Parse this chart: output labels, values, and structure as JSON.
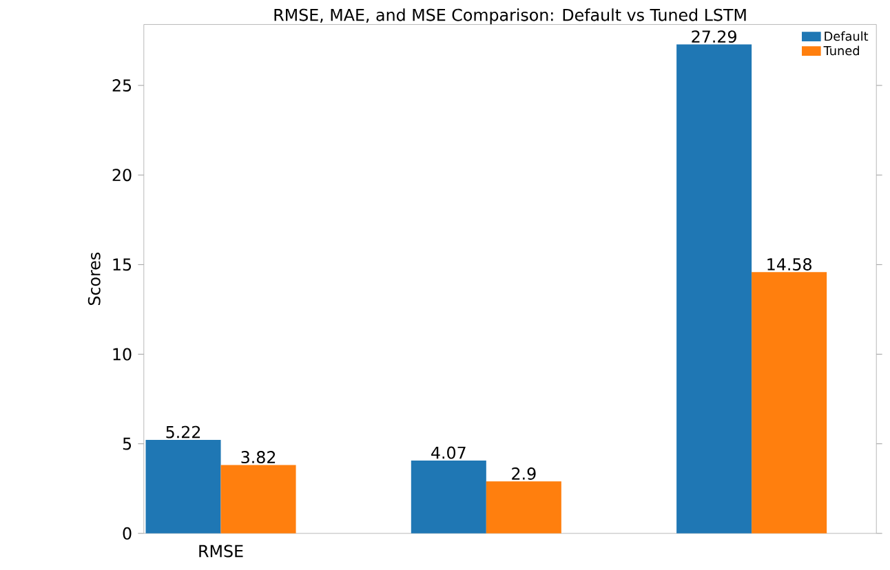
{
  "chart_data": {
    "type": "bar",
    "title": "RMSE, MAE, and MSE Comparison: Default vs Tuned LSTM",
    "ylabel": "Scores",
    "categories": [
      "RMSE",
      null,
      null
    ],
    "series": [
      {
        "name": "Default",
        "color": "#1f77b4",
        "values": [
          5.22,
          4.07,
          27.29
        ]
      },
      {
        "name": "Tuned",
        "color": "#ff7f0e",
        "values": [
          3.82,
          2.9,
          14.58
        ]
      }
    ],
    "ylim": [
      0,
      28.4
    ],
    "yticks": [
      0,
      5,
      10,
      15,
      20,
      25
    ],
    "data_labels": true,
    "legend": "top right",
    "grid": false
  }
}
